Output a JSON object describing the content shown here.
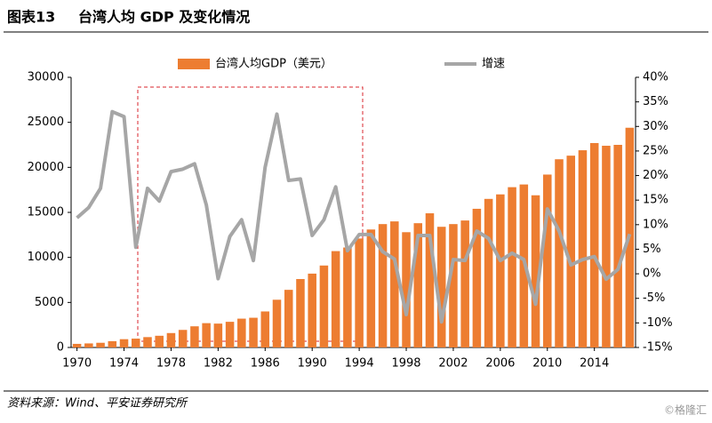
{
  "header": {
    "label": "图表13",
    "title": "台湾人均 GDP 及变化情况"
  },
  "chart_data": {
    "type": "bar_line",
    "categories": [
      "1970",
      null,
      null,
      null,
      "1974",
      null,
      null,
      null,
      "1978",
      null,
      null,
      null,
      "1982",
      null,
      null,
      null,
      "1986",
      null,
      null,
      null,
      "1990",
      null,
      null,
      null,
      "1994",
      null,
      null,
      null,
      "1998",
      null,
      null,
      null,
      "2002",
      null,
      null,
      null,
      "2006",
      null,
      null,
      null,
      "2010",
      null,
      null,
      null,
      "2014",
      null,
      null,
      null
    ],
    "series": [
      {
        "name": "台湾人均GDP（美元）",
        "color": "#ed7d31",
        "axis": "y",
        "values": [
          400,
          450,
          520,
          700,
          920,
          980,
          1150,
          1300,
          1600,
          1950,
          2350,
          2700,
          2650,
          2850,
          3200,
          3300,
          4000,
          5300,
          6400,
          7600,
          8200,
          9100,
          10700,
          11100,
          12100,
          13100,
          13700,
          14000,
          12800,
          13800,
          14900,
          13400,
          13700,
          14100,
          15400,
          16500,
          17000,
          17800,
          18100,
          16900,
          19200,
          20900,
          21300,
          21900,
          22700,
          22400,
          22500,
          24400
        ]
      },
      {
        "name": "增速",
        "color": "#a6a6a6",
        "axis": "y2",
        "values": [
          11.4,
          13.5,
          17.4,
          33,
          32,
          5.4,
          17.4,
          14.8,
          20.8,
          21.3,
          22.4,
          14,
          -1,
          7.6,
          11,
          2.7,
          21.7,
          32.5,
          19,
          19.3,
          7.8,
          11,
          17.7,
          4.7,
          8,
          8,
          4.5,
          3,
          -8.3,
          7.8,
          7.8,
          -9.8,
          2.9,
          2.7,
          8.7,
          7.2,
          2.7,
          4.2,
          2.9,
          -6.2,
          13.2,
          8.7,
          1.8,
          2.9,
          3.5,
          -1.1,
          0.9,
          8.1
        ]
      }
    ],
    "ylim": [
      0,
      30000
    ],
    "yticks": [
      0,
      5000,
      10000,
      15000,
      20000,
      25000,
      30000
    ],
    "y2lim": [
      -15,
      40
    ],
    "y2ticks": [
      {
        "value": -15,
        "label": "-15%"
      },
      {
        "value": -10,
        "label": "-10%"
      },
      {
        "value": -5,
        "label": "-5%"
      },
      {
        "value": 0,
        "label": "0%"
      },
      {
        "value": 5,
        "label": "5%"
      },
      {
        "value": 10,
        "label": "10%"
      },
      {
        "value": 15,
        "label": "15%"
      },
      {
        "value": 20,
        "label": "20%"
      },
      {
        "value": 25,
        "label": "25%"
      },
      {
        "value": 30,
        "label": "30%"
      },
      {
        "value": 35,
        "label": "35%"
      },
      {
        "value": 40,
        "label": "40%"
      }
    ],
    "legend": "top"
  },
  "footer": {
    "source": "资料来源：Wind、平安证券研究所",
    "watermark": "©格隆汇"
  }
}
